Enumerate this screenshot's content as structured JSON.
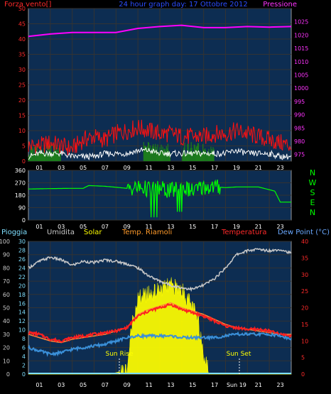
{
  "top": {
    "title": "24 hour graph day:  17 Ottobre 2012",
    "left_label": "Forza vento[]",
    "right_label": "Pressione"
  },
  "bottom_header": {
    "rain": "Pioggia",
    "humidity": "Umidita",
    "solar": "Solar",
    "soil": "Temp. Riamoli",
    "temperature": "Temperatura",
    "dewpoint": "Dew Point (°C)"
  },
  "annotations": {
    "sunrise": "Sun Rise",
    "sunset": "Sun Set"
  },
  "colors": {
    "bg": "#000000",
    "plot_bg": "#0d2d52",
    "pressure": "#ff00ff",
    "wind_gust": "#ff1010",
    "wind_avg": "#ffffff",
    "wind_green": "#1c7c1c",
    "direction": "#00ff00",
    "humidity": "#c8c8c8",
    "solar": "#ffff00",
    "temperature": "#ff2020",
    "dewpoint": "#3a8fd8",
    "axis_red": "#ff2a2a",
    "axis_pink": "#ff33ff",
    "axis_cyan": "#7fdfff",
    "axis_gray": "#c9c9c9",
    "axis_blue": "#6aa8ff"
  },
  "chart_data": [
    {
      "type": "line",
      "x_ticks": [
        "01",
        "03",
        "05",
        "07",
        "09",
        "11",
        "13",
        "15",
        "17",
        "19",
        "21",
        "23"
      ],
      "y_left": {
        "label": "Forza vento[]",
        "ticks": [
          0,
          5,
          10,
          15,
          20,
          25,
          30,
          35,
          40,
          45,
          50
        ],
        "lim": [
          0,
          50
        ]
      },
      "y_right": {
        "label": "Pressione",
        "ticks": [
          975,
          980,
          985,
          990,
          995,
          1000,
          1005,
          1010,
          1015,
          1020,
          1025
        ],
        "lim": [
          972.5,
          1030
        ]
      },
      "series": [
        {
          "name": "Pressione",
          "axis": "right",
          "x": [
            0,
            2,
            4,
            6,
            8,
            10,
            12,
            14,
            16,
            18,
            20,
            22,
            24
          ],
          "values": [
            1019.5,
            1020.4,
            1021.0,
            1021.0,
            1021.0,
            1022.5,
            1023.2,
            1023.7,
            1022.8,
            1022.8,
            1023.2,
            1023.0,
            1023.2
          ]
        },
        {
          "axis": "left",
          "x": [
            0,
            1,
            2,
            3,
            4,
            5,
            6,
            7,
            8,
            9,
            10,
            11,
            12,
            13,
            14,
            15,
            16,
            17,
            18,
            19,
            20,
            21,
            22,
            23,
            24
          ],
          "values": [
            4,
            4,
            5,
            4,
            3,
            6,
            7,
            6,
            8,
            9,
            10,
            9,
            8,
            8,
            7,
            7,
            7,
            8,
            8,
            9,
            8,
            7,
            6,
            5,
            4
          ]
        },
        {
          "axis": "left",
          "x": [
            0,
            1,
            2,
            3,
            4,
            5,
            6,
            7,
            8,
            9,
            10,
            11,
            12,
            13,
            14,
            15,
            16,
            17,
            18,
            19,
            20,
            21,
            22,
            23,
            24
          ],
          "values": [
            1,
            2,
            2,
            2,
            1,
            1,
            1,
            2,
            2,
            2,
            3,
            3,
            2,
            2,
            2,
            2,
            2,
            2,
            2,
            3,
            2,
            2,
            2,
            1,
            1
          ]
        }
      ]
    },
    {
      "type": "line",
      "x_ticks": [
        "01",
        "03",
        "05",
        "07",
        "09",
        "11",
        "13",
        "15",
        "17",
        "19",
        "21",
        "23"
      ],
      "y_left": {
        "ticks": [
          0,
          90,
          180,
          270,
          360
        ],
        "lim": [
          0,
          360
        ]
      },
      "y_right_labels": [
        "N",
        "W",
        "S",
        "E",
        "N"
      ],
      "series": [
        {
          "axis": "left",
          "x": [
            0,
            2,
            4,
            5,
            5.5,
            7,
            9,
            10,
            11,
            12,
            13,
            14,
            15,
            16,
            17,
            18,
            19,
            20,
            21,
            22,
            22.5,
            23,
            24
          ],
          "values": [
            225,
            228,
            230,
            230,
            250,
            245,
            230,
            235,
            225,
            230,
            210,
            240,
            210,
            240,
            240,
            235,
            240,
            240,
            240,
            220,
            210,
            130,
            130
          ]
        }
      ]
    },
    {
      "type": "line",
      "x_ticks": [
        "01",
        "03",
        "05",
        "07",
        "09",
        "11",
        "13",
        "15",
        "17",
        "Sun 19",
        "21",
        "23"
      ],
      "y_humidity": {
        "ticks": [
          0,
          10,
          20,
          30,
          40,
          50,
          60,
          70,
          80,
          90,
          100
        ],
        "lim": [
          0,
          100
        ]
      },
      "y_solar_pct": {
        "ticks": [
          0,
          2,
          4,
          6,
          8,
          10,
          12,
          14,
          16,
          18,
          20,
          22,
          24,
          26,
          28,
          30
        ],
        "lim": [
          0,
          30
        ]
      },
      "y_temp": {
        "ticks": [
          0,
          5,
          10,
          15,
          20,
          25,
          30,
          35,
          40
        ],
        "lim": [
          0,
          40
        ]
      },
      "series": [
        {
          "name": "Umidita",
          "axis": "humidity",
          "x": [
            0,
            1,
            2,
            3,
            4,
            5,
            6,
            7,
            8,
            9,
            10,
            11,
            12,
            13,
            14,
            15,
            16,
            17,
            18,
            19,
            20,
            21,
            22,
            23,
            24
          ],
          "values": [
            80,
            85,
            88,
            86,
            82,
            85,
            84,
            86,
            85,
            83,
            80,
            74,
            70,
            67,
            65,
            64,
            67,
            72,
            80,
            90,
            93,
            94,
            93,
            94,
            91
          ]
        },
        {
          "name": "Solar",
          "axis": "solar_pct",
          "x": [
            0,
            7.5,
            9.0,
            9.5,
            10,
            11,
            12,
            13,
            14,
            15,
            15.5,
            16,
            16.5,
            24
          ],
          "values": [
            0,
            0,
            1,
            12,
            17,
            18,
            19,
            20,
            19,
            15,
            12,
            5,
            0,
            0
          ]
        },
        {
          "name": "Temperatura",
          "axis": "temp",
          "x": [
            0,
            1,
            2,
            3,
            4,
            5,
            6,
            7,
            8,
            9,
            10,
            11,
            12,
            13,
            14,
            15,
            16,
            17,
            18,
            19,
            20,
            21,
            22,
            23,
            24
          ],
          "values": [
            12.5,
            12,
            10.5,
            10,
            11,
            11.5,
            12,
            12.5,
            13,
            14,
            17.5,
            19,
            20,
            21,
            19.5,
            18.5,
            17.5,
            16,
            14.5,
            14,
            13.5,
            13.5,
            13,
            12,
            11.5
          ]
        },
        {
          "name": "Temp. Riamoli",
          "axis": "temp",
          "x": [
            0,
            1,
            2,
            3,
            4,
            5,
            6,
            7,
            8,
            9,
            10,
            11,
            12,
            13,
            14,
            15,
            16,
            17,
            18,
            19,
            20,
            21,
            22,
            23,
            24
          ],
          "values": [
            12,
            11,
            10,
            9.5,
            10.5,
            11,
            11.5,
            12,
            13,
            14,
            18,
            19.5,
            20.5,
            21.5,
            20,
            19,
            18,
            16.5,
            15,
            14,
            13.5,
            13,
            12.5,
            12,
            12
          ]
        },
        {
          "name": "Dew Point",
          "axis": "temp",
          "x": [
            0,
            1,
            2,
            3,
            4,
            5,
            6,
            7,
            8,
            9,
            10,
            11,
            12,
            13,
            14,
            15,
            16,
            17,
            18,
            19,
            20,
            21,
            22,
            23,
            24
          ],
          "values": [
            8,
            7,
            6,
            6.5,
            7.5,
            8,
            8.5,
            9,
            10,
            11,
            11.5,
            11.5,
            11.5,
            11.5,
            11,
            11,
            11,
            11,
            11.5,
            12,
            12,
            12,
            12,
            11.5,
            10.5
          ]
        }
      ],
      "rain": {
        "name": "Pioggia",
        "values": [
          0
        ]
      }
    }
  ]
}
